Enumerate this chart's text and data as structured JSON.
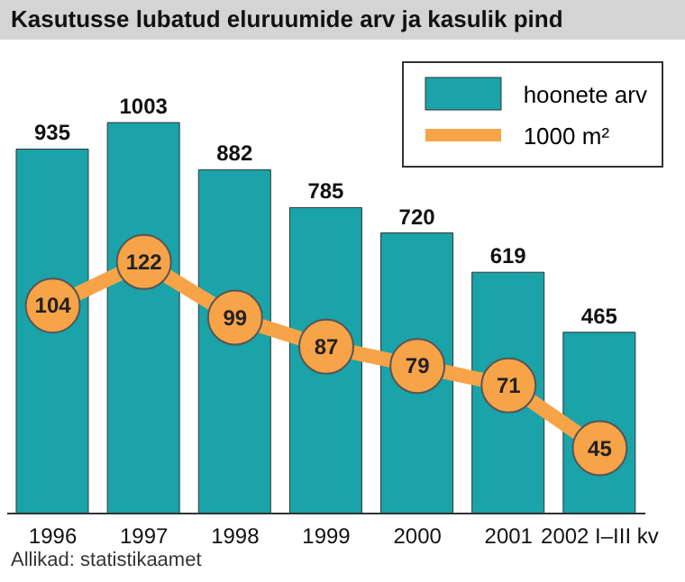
{
  "chart_data": {
    "type": "bar",
    "title": "Kasutusse lubatud eluruumide arv ja kasulik pind",
    "categories": [
      "1996",
      "1997",
      "1998",
      "1999",
      "2000",
      "2001",
      "2002 I–III kv"
    ],
    "series": [
      {
        "name": "hoonete arv",
        "color": "#1aa3a8",
        "values": [
          935,
          1003,
          882,
          785,
          720,
          619,
          465
        ]
      },
      {
        "name": "1000 m²",
        "type": "line",
        "axis": "y2",
        "color": "#f7a348",
        "values": [
          104,
          122,
          99,
          87,
          79,
          71,
          45
        ]
      }
    ],
    "data_labels": true,
    "marker": "circle",
    "legend": "top right",
    "grid": false,
    "annotations": [
      "Allikad: statistikaamet"
    ]
  }
}
